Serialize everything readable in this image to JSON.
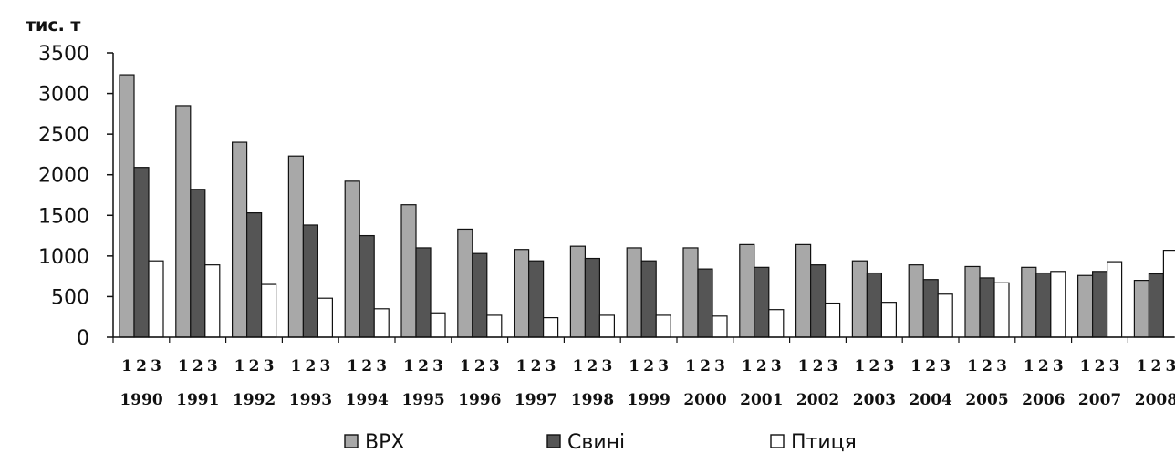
{
  "chart_data": {
    "type": "bar",
    "ylabel": "тис. т",
    "ylim": [
      0,
      3500
    ],
    "yticks": [
      0,
      500,
      1000,
      1500,
      2000,
      2500,
      3000,
      3500
    ],
    "ytick_labels": [
      "0",
      "500",
      "1000",
      "1500",
      "2000",
      "2500",
      "3000",
      "3500"
    ],
    "bar_numbers": [
      "1",
      "2",
      "3"
    ],
    "categories": [
      "1990",
      "1991",
      "1992",
      "1993",
      "1994",
      "1995",
      "1996",
      "1997",
      "1998",
      "1999",
      "2000",
      "2001",
      "2002",
      "2003",
      "2004",
      "2005",
      "2006",
      "2007",
      "2008"
    ],
    "series": [
      {
        "name": "ВРХ",
        "color": "#a8a8a8",
        "values": [
          3230,
          2850,
          2400,
          2230,
          1920,
          1630,
          1330,
          1080,
          1120,
          1100,
          1100,
          1140,
          1140,
          940,
          890,
          870,
          860,
          760,
          700
        ]
      },
      {
        "name": "Свині",
        "color": "#555555",
        "values": [
          2090,
          1820,
          1530,
          1380,
          1250,
          1100,
          1030,
          940,
          970,
          940,
          840,
          860,
          890,
          790,
          710,
          730,
          790,
          810,
          780
        ]
      },
      {
        "name": "Птиця",
        "color": "#ffffff",
        "values": [
          940,
          890,
          650,
          480,
          350,
          300,
          270,
          240,
          270,
          270,
          260,
          340,
          420,
          430,
          530,
          670,
          810,
          930,
          1070
        ]
      }
    ],
    "grid": false,
    "legend_position": "bottom"
  }
}
